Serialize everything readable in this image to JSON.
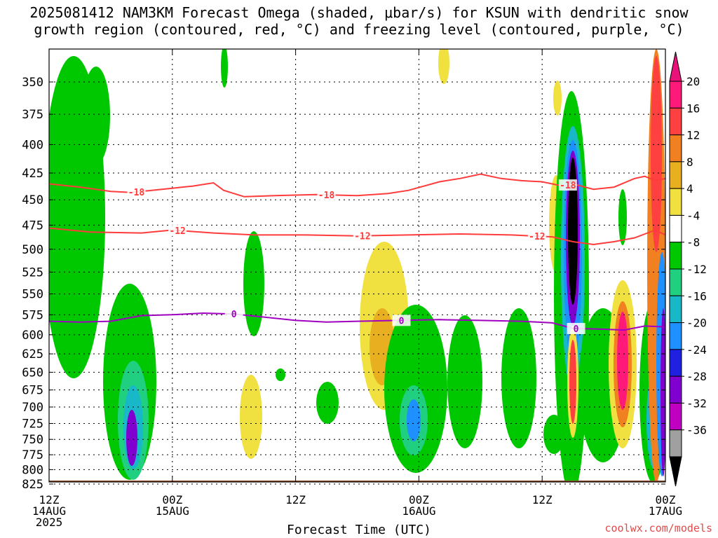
{
  "title": {
    "line1": "2025081412 NAM3KM Forecast Omega (shaded, μbar/s) for KSUN with dendritic snow",
    "line2": "growth region (contoured, red, °C) and freezing level (contoured, purple, °C)"
  },
  "credit": "coolwx.com/models",
  "chart_data": {
    "type": "heatmap",
    "xlabel": "Forecast Time (UTC)",
    "ylabel": "",
    "x_range_hours": [
      0,
      60
    ],
    "xlim": [
      "2025-08-14T12Z",
      "2025-08-17T00Z"
    ],
    "ylim": [
      825,
      325
    ],
    "y_scale": "log-pressure (inverted)",
    "grid": true,
    "x_ticks": [
      {
        "hour": 0,
        "lines": [
          "12Z",
          "14AUG",
          "2025"
        ]
      },
      {
        "hour": 12,
        "lines": [
          "00Z",
          "15AUG"
        ]
      },
      {
        "hour": 24,
        "lines": [
          "12Z"
        ]
      },
      {
        "hour": 36,
        "lines": [
          "00Z",
          "16AUG"
        ]
      },
      {
        "hour": 48,
        "lines": [
          "12Z"
        ]
      },
      {
        "hour": 60,
        "lines": [
          "00Z",
          "17AUG"
        ]
      }
    ],
    "y_ticks": [
      "350",
      "375",
      "400",
      "425",
      "450",
      "475",
      "500",
      "525",
      "550",
      "575",
      "600",
      "625",
      "650",
      "675",
      "700",
      "725",
      "750",
      "775",
      "800",
      "825"
    ],
    "colorbar": {
      "labels": [
        "20",
        "16",
        "12",
        "8",
        "4",
        "-4",
        "-8",
        "-12",
        "-16",
        "-20",
        "-24",
        "-28",
        "-32",
        "-36"
      ],
      "colors": [
        "#ff1a7a",
        "#ff4040",
        "#f08020",
        "#e8b020",
        "#f0e040",
        "#ffffff",
        "#00c800",
        "#20d080",
        "#18b8c8",
        "#1e90ff",
        "#2020e0",
        "#8000d0",
        "#c000c0",
        "#a0a0a0"
      ]
    },
    "contours": [
      {
        "level": "-18",
        "color": "#ff3b3b",
        "label": "-18",
        "points": [
          [
            0,
            435
          ],
          [
            3,
            438
          ],
          [
            6,
            442
          ],
          [
            8,
            443
          ],
          [
            11,
            440
          ],
          [
            14,
            437
          ],
          [
            16,
            434
          ],
          [
            17,
            441
          ],
          [
            19,
            447
          ],
          [
            22,
            446
          ],
          [
            26,
            445
          ],
          [
            30,
            446
          ],
          [
            33,
            444
          ],
          [
            35,
            441
          ],
          [
            38,
            433
          ],
          [
            40,
            430
          ],
          [
            42,
            426
          ],
          [
            44,
            430
          ],
          [
            46,
            432
          ],
          [
            48,
            433
          ],
          [
            50,
            437
          ],
          [
            51,
            435
          ],
          [
            53,
            440
          ],
          [
            55,
            438
          ],
          [
            57,
            430
          ],
          [
            58,
            428
          ],
          [
            59,
            432
          ],
          [
            60,
            430
          ]
        ],
        "label_hours": [
          8.5,
          27,
          50.5
        ]
      },
      {
        "level": "-12",
        "color": "#ff3b3b",
        "label": "-12",
        "points": [
          [
            0,
            478
          ],
          [
            4,
            482
          ],
          [
            9,
            483
          ],
          [
            12,
            480
          ],
          [
            16,
            483
          ],
          [
            20,
            485
          ],
          [
            25,
            485
          ],
          [
            30,
            486
          ],
          [
            35,
            485
          ],
          [
            40,
            484
          ],
          [
            45,
            485
          ],
          [
            49,
            487
          ],
          [
            51,
            492
          ],
          [
            53,
            495
          ],
          [
            55,
            492
          ],
          [
            57,
            488
          ],
          [
            58,
            484
          ],
          [
            59,
            480
          ],
          [
            60,
            485
          ]
        ],
        "label_hours": [
          12.5,
          30.5,
          47.5
        ]
      },
      {
        "level": "0",
        "color": "#a000c0",
        "label": "0",
        "points": [
          [
            0,
            583
          ],
          [
            3,
            584
          ],
          [
            6,
            583
          ],
          [
            9,
            576
          ],
          [
            12,
            575
          ],
          [
            15,
            573
          ],
          [
            18,
            574
          ],
          [
            21,
            578
          ],
          [
            24,
            582
          ],
          [
            27,
            584
          ],
          [
            30,
            583
          ],
          [
            34,
            582
          ],
          [
            38,
            581
          ],
          [
            42,
            582
          ],
          [
            46,
            583
          ],
          [
            49,
            585
          ],
          [
            51,
            592
          ],
          [
            54,
            593
          ],
          [
            56,
            594
          ],
          [
            58,
            589
          ],
          [
            60,
            590
          ]
        ],
        "label_hours": [
          18,
          34.3,
          51.3
        ]
      }
    ]
  }
}
